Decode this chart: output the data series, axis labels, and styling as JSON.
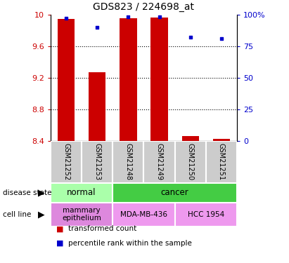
{
  "title": "GDS823 / 224698_at",
  "samples": [
    "GSM21252",
    "GSM21253",
    "GSM21248",
    "GSM21249",
    "GSM21250",
    "GSM21251"
  ],
  "bar_values": [
    9.94,
    9.27,
    9.95,
    9.96,
    8.46,
    8.42
  ],
  "percentile_values": [
    97,
    90,
    98,
    98,
    82,
    81
  ],
  "ylim_left": [
    8.4,
    10.0
  ],
  "ylim_right": [
    0,
    100
  ],
  "yticks_left": [
    8.4,
    8.8,
    9.2,
    9.6,
    10.0
  ],
  "ytick_labels_left": [
    "8.4",
    "8.8",
    "9.2",
    "9.6",
    "10"
  ],
  "yticks_right": [
    0,
    25,
    50,
    75,
    100
  ],
  "ytick_labels_right": [
    "0",
    "25",
    "50",
    "75",
    "100%"
  ],
  "bar_color": "#cc0000",
  "dot_color": "#0000cc",
  "bar_bottom": 8.4,
  "disease_groups": [
    {
      "label": "normal",
      "start": 0,
      "end": 2,
      "color": "#aaffaa"
    },
    {
      "label": "cancer",
      "start": 2,
      "end": 6,
      "color": "#44cc44"
    }
  ],
  "cell_line_groups": [
    {
      "label": "mammary\nepithelium",
      "start": 0,
      "end": 2,
      "color": "#dd88dd"
    },
    {
      "label": "MDA-MB-436",
      "start": 2,
      "end": 4,
      "color": "#ee99ee"
    },
    {
      "label": "HCC 1954",
      "start": 4,
      "end": 6,
      "color": "#ee99ee"
    }
  ],
  "legend_items": [
    {
      "label": "transformed count",
      "color": "#cc0000"
    },
    {
      "label": "percentile rank within the sample",
      "color": "#0000cc"
    }
  ],
  "grid_yticks": [
    8.8,
    9.2,
    9.6
  ],
  "bar_width": 0.55,
  "sample_box_color": "#cccccc",
  "spine_color": "#000000"
}
